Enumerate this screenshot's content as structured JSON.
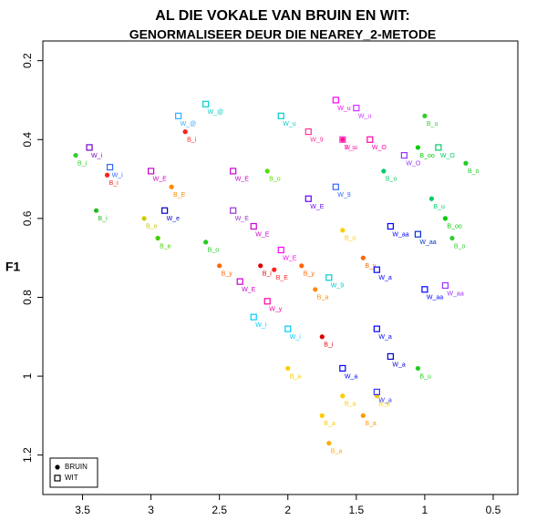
{
  "chart_data": {
    "type": "scatter",
    "title": "AL DIE VOKALE VAN BRUIN EN WIT:",
    "subtitle": "GENORMALISEER DEUR DIE NEAREY_2-METODE",
    "y_label": "F1",
    "xlim": [
      3.79,
      0.32
    ],
    "ylim": [
      1.3,
      0.15
    ],
    "xticks": [
      3.5,
      3.0,
      2.5,
      2.0,
      1.5,
      1.0,
      0.5
    ],
    "yticks": [
      0.2,
      0.4,
      0.6,
      0.8,
      1.0,
      1.2
    ],
    "legend": "bottom-left",
    "series": [
      {
        "name": "BRUIN",
        "marker": "circle",
        "x": [
          3.55,
          3.32,
          3.4,
          3.05,
          2.95,
          2.85,
          2.75,
          2.6,
          2.5,
          2.2,
          2.1,
          2.15,
          2.0,
          1.9,
          1.8,
          1.75,
          1.75,
          1.7,
          1.6,
          1.45,
          1.35,
          1.6,
          1.45,
          1.6,
          1.3,
          1.05,
          1.0,
          0.95,
          0.7,
          0.8,
          1.05,
          0.85
        ],
        "values": [
          0.44,
          0.49,
          0.58,
          0.6,
          0.65,
          0.52,
          0.38,
          0.66,
          0.72,
          0.72,
          0.73,
          0.48,
          0.98,
          0.72,
          0.78,
          0.9,
          1.1,
          1.17,
          1.05,
          1.1,
          1.05,
          0.63,
          0.7,
          0.4,
          0.48,
          0.42,
          0.34,
          0.55,
          0.46,
          0.65,
          0.98,
          0.6
        ],
        "labels": [
          "B_i",
          "B_i",
          "B_i",
          "B_e",
          "B_e",
          "B_E",
          "B_i",
          "B_o",
          "B_y",
          "B_i",
          "B_E",
          "B_o",
          "B_a",
          "B_y",
          "B_a",
          "B_i",
          "B_a",
          "B_a",
          "B_a",
          "B_a",
          "B_a",
          "B_o",
          "B_y",
          "B_u",
          "B_o",
          "B_oo",
          "B_u",
          "B_u",
          "B_o",
          "B_o",
          "B_u",
          "B_oo"
        ],
        "colors": [
          "#33cc33",
          "#ff2020",
          "#22bb22",
          "#cccc00",
          "#44cc00",
          "#ff8800",
          "#ff2020",
          "#22cc22",
          "#ff6600",
          "#dd0000",
          "#ff2020",
          "#55dd00",
          "#ffcc00",
          "#ff6600",
          "#ff8800",
          "#dd0000",
          "#ffcc00",
          "#ffaa00",
          "#ffcc00",
          "#ff9900",
          "#ffcc00",
          "#ffcc00",
          "#ff6600",
          "#ff1493",
          "#00cc66",
          "#00cc00",
          "#33cc33",
          "#00cc66",
          "#22cc22",
          "#33cc33",
          "#22cc22",
          "#00cc00"
        ]
      },
      {
        "name": "WIT",
        "marker": "square",
        "x": [
          3.45,
          3.3,
          3.0,
          2.9,
          2.6,
          2.8,
          2.4,
          2.4,
          2.25,
          2.05,
          2.05,
          2.35,
          2.15,
          2.0,
          2.25,
          1.85,
          1.65,
          1.6,
          1.65,
          1.85,
          1.7,
          1.5,
          1.4,
          1.15,
          1.35,
          1.25,
          1.05,
          1.0,
          1.35,
          1.25,
          1.35,
          1.6,
          0.85,
          0.9
        ],
        "values": [
          0.42,
          0.47,
          0.48,
          0.58,
          0.31,
          0.34,
          0.48,
          0.58,
          0.62,
          0.68,
          0.34,
          0.76,
          0.81,
          0.88,
          0.85,
          0.38,
          0.3,
          0.4,
          0.52,
          0.55,
          0.75,
          0.32,
          0.4,
          0.44,
          0.73,
          0.62,
          0.64,
          0.78,
          0.88,
          0.95,
          1.04,
          0.98,
          0.77,
          0.42
        ],
        "labels": [
          "W_i",
          "W_i",
          "W_E",
          "W_e",
          "W_@",
          "W_@",
          "W_E",
          "W_E",
          "W_E",
          "W_E",
          "W_u",
          "W_E",
          "W_y",
          "W_i",
          "W_i",
          "W_9",
          "W_u",
          "W_u",
          "W_9",
          "W_E",
          "W_9",
          "W_u",
          "W_O",
          "W_O",
          "W_a",
          "W_aa",
          "W_aa",
          "W_aa",
          "W_a",
          "W_a",
          "W_a",
          "W_a",
          "W_aa",
          "W_O"
        ],
        "colors": [
          "#7700cc",
          "#3366ff",
          "#cc00cc",
          "#0000cc",
          "#00cccc",
          "#33aaff",
          "#cc00cc",
          "#9933cc",
          "#cc00cc",
          "#ff00ff",
          "#00cccc",
          "#cc00cc",
          "#ff00aa",
          "#00ccff",
          "#00ccff",
          "#ff3399",
          "#ff00ff",
          "#ff33cc",
          "#3366ff",
          "#6600ff",
          "#00cccc",
          "#cc33ff",
          "#ff00aa",
          "#9933ff",
          "#0000ff",
          "#0000ff",
          "#0033cc",
          "#0000ff",
          "#0000ff",
          "#0000cc",
          "#3333ff",
          "#0000ff",
          "#9933ff",
          "#00cc66"
        ]
      }
    ]
  }
}
